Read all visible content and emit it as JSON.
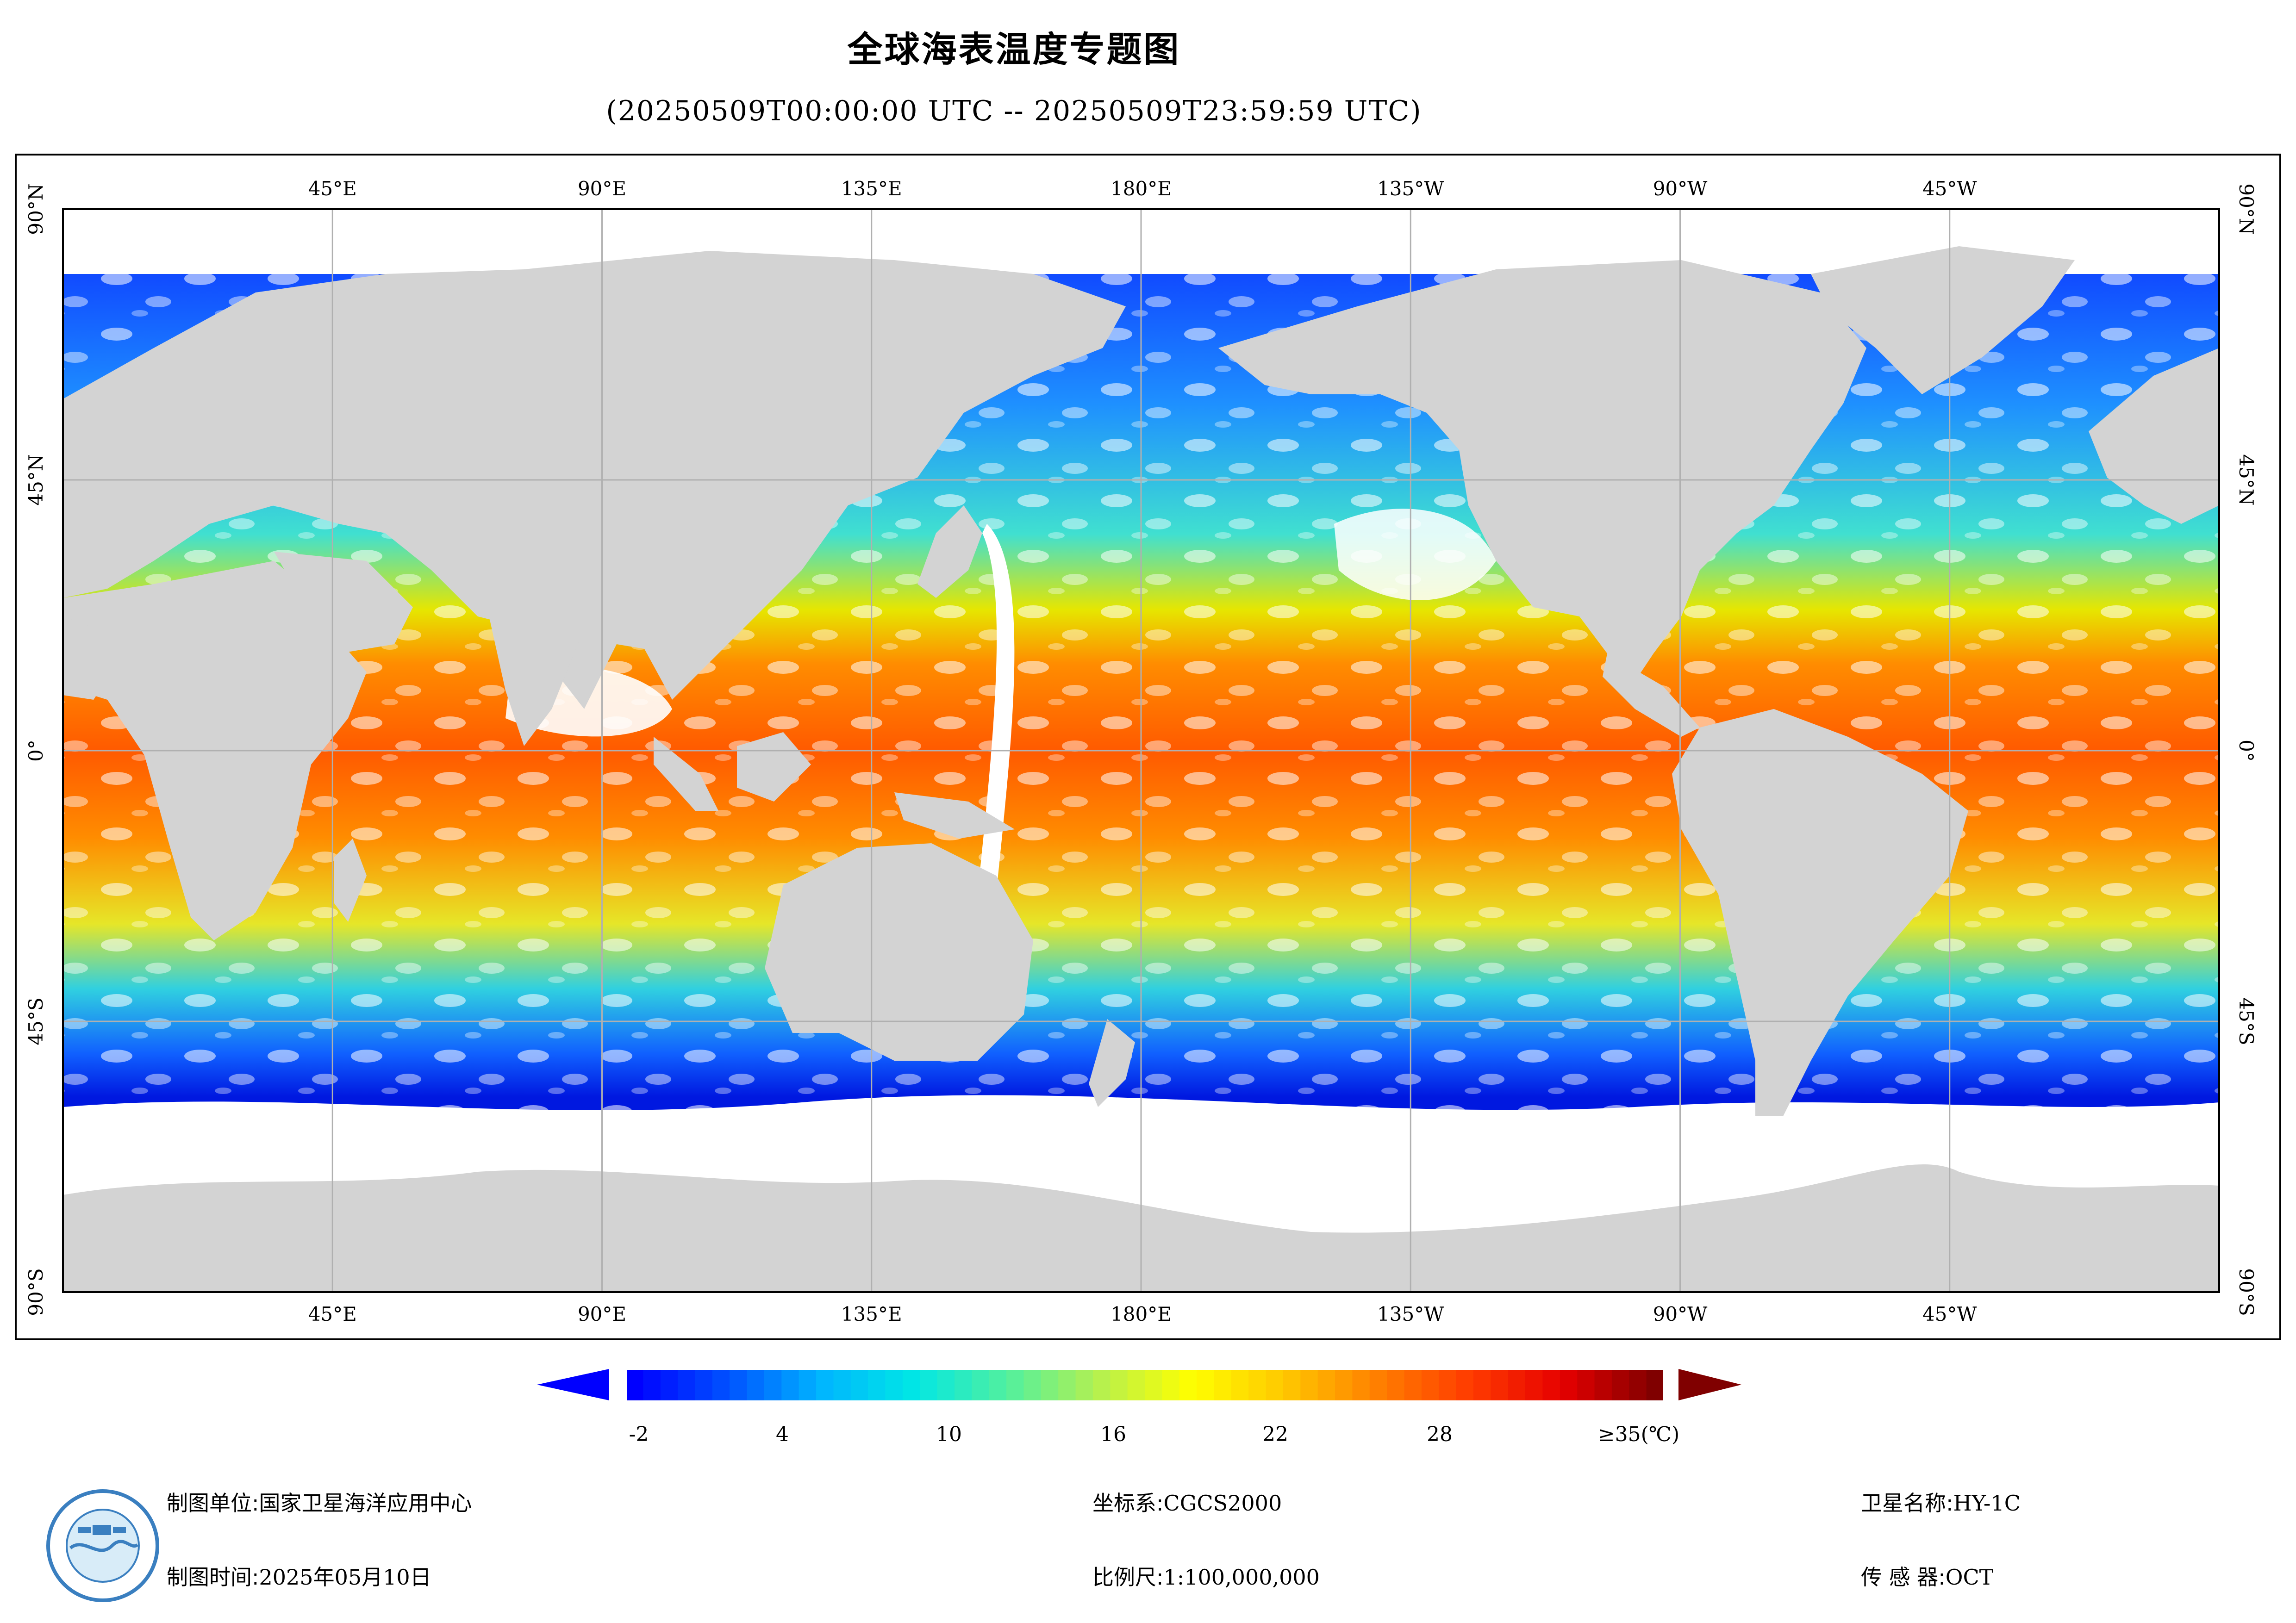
{
  "title": "全球海表温度专题图",
  "subtitle": "(20250509T00:00:00 UTC -- 20250509T23:59:59 UTC)",
  "map": {
    "lon_labels": [
      "45°E",
      "90°E",
      "135°E",
      "180°E",
      "135°W",
      "90°W",
      "45°W"
    ],
    "lat_labels": [
      "90°N",
      "45°N",
      "0°",
      "45°S",
      "90°S"
    ],
    "colors": {
      "land": "#d3d3d3",
      "no_data": "#ffffff",
      "grid": "#b0b0b0"
    }
  },
  "legend": {
    "labels": [
      "-2",
      "4",
      "10",
      "16",
      "22",
      "28",
      "≥35(℃)"
    ],
    "colors": [
      "#0000ff",
      "#0050ff",
      "#00b4ff",
      "#00e6e6",
      "#50f0a0",
      "#b4f050",
      "#ffff00",
      "#ffc800",
      "#ff8000",
      "#ff3c00",
      "#e60000",
      "#800000"
    ]
  },
  "footer": {
    "org_label": "制图单位:",
    "org_value": "国家卫星海洋应用中心",
    "time_label": "制图时间:",
    "time_value": "2025年05月10日",
    "crs_label": "坐标系:",
    "crs_value": "CGCS2000",
    "scale_label": "比例尺:",
    "scale_value": "1:100,000,000",
    "satellite_label": "卫星名称:",
    "satellite_value": "HY-1C",
    "sensor_label": "传 感 器:",
    "sensor_value": "OCT"
  },
  "logo_icon": "nsoas-logo-icon"
}
